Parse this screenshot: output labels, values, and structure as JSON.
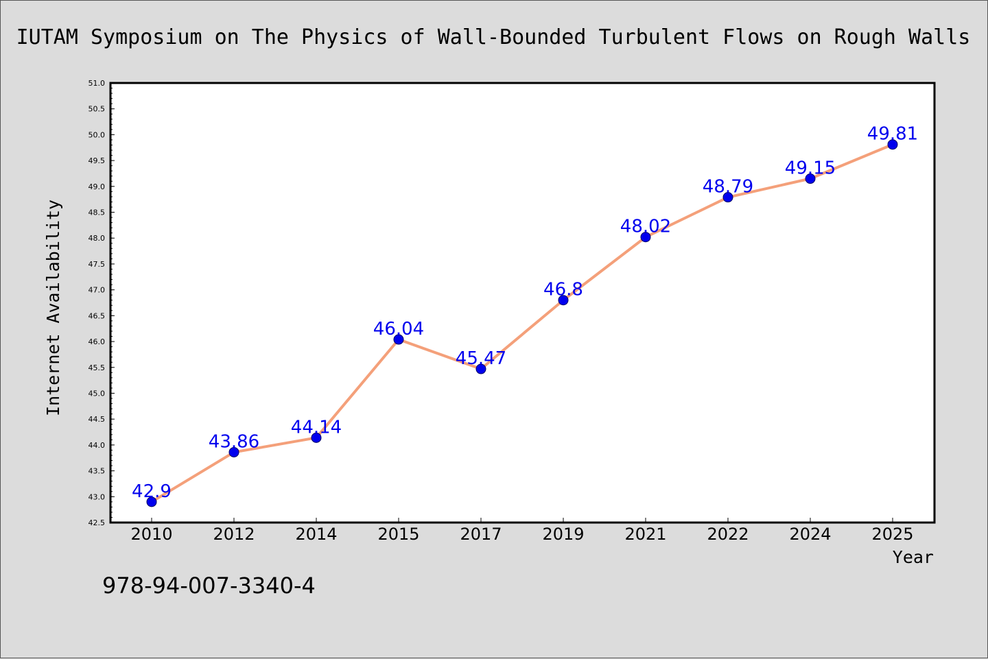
{
  "chart_data": {
    "type": "line",
    "title": "IUTAM Symposium on The Physics of Wall-Bounded Turbulent Flows on Rough Walls",
    "xlabel": "Year",
    "ylabel": "Internet Availability",
    "categories": [
      "2010",
      "2012",
      "2014",
      "2015",
      "2017",
      "2019",
      "2021",
      "2022",
      "2024",
      "2025"
    ],
    "series": [
      {
        "values": [
          42.9,
          43.86,
          44.14,
          46.04,
          45.47,
          46.8,
          48.02,
          48.79,
          49.15,
          49.81
        ],
        "labels": [
          "42.9",
          "43.86",
          "44.14",
          "46.04",
          "45.47",
          "46.8",
          "48.02",
          "48.79",
          "49.15",
          "49.81"
        ]
      }
    ],
    "ylim": [
      42.5,
      51.0
    ],
    "yticks": [
      "42.5",
      "43.0",
      "43.5",
      "44.0",
      "44.5",
      "45.0",
      "45.5",
      "46.0",
      "46.5",
      "47.0",
      "47.5",
      "48.0",
      "48.5",
      "49.0",
      "49.5",
      "50.0",
      "50.5",
      "51.0"
    ],
    "grid": false,
    "legend": "none",
    "colors": {
      "line": "#f4a07a",
      "marker": "#0000ee",
      "marker_edge": "#000066",
      "data_label": "#0000ee",
      "plot_bg": "#ffffff",
      "page_bg": "#dcdcdc"
    },
    "footnote": "978-94-007-3340-4"
  }
}
